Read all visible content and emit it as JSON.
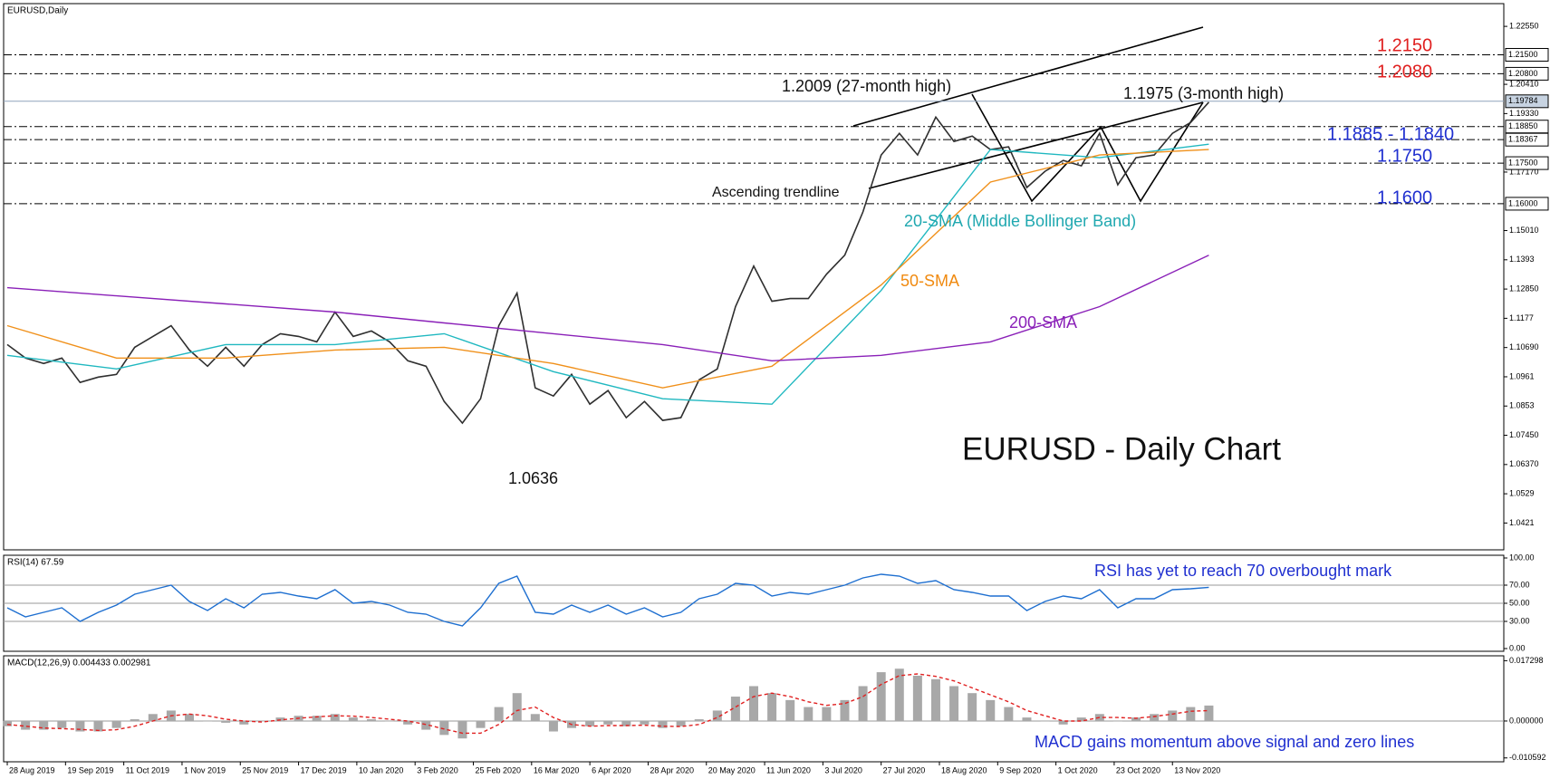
{
  "chart_data": [
    {
      "type": "line",
      "title": "EURUSD,Daily",
      "x": [
        0,
        5,
        10,
        15,
        20,
        25,
        30,
        35,
        40,
        45,
        50,
        55,
        60,
        65,
        70,
        75,
        80,
        85,
        90,
        95,
        100,
        105,
        110,
        115,
        120,
        125,
        130,
        135,
        140,
        145,
        150,
        155,
        160,
        165,
        170,
        175,
        180,
        185,
        190,
        195,
        200,
        205,
        210,
        215,
        220,
        225,
        230,
        235,
        240,
        245,
        250,
        255,
        260,
        265,
        270,
        275,
        280,
        285,
        290,
        295,
        300,
        305,
        310,
        315,
        320,
        325,
        330
      ],
      "xlim": [
        -1,
        411
      ],
      "xticks": [
        {
          "value": 0,
          "label": "28 Aug 2019"
        },
        {
          "value": 16,
          "label": "19 Sep 2019"
        },
        {
          "value": 32,
          "label": "11 Oct 2019"
        },
        {
          "value": 48,
          "label": "1 Nov 2019"
        },
        {
          "value": 64,
          "label": "25 Nov 2019"
        },
        {
          "value": 80,
          "label": "17 Dec 2019"
        },
        {
          "value": 96,
          "label": "10 Jan 2020"
        },
        {
          "value": 112,
          "label": "3 Feb 2020"
        },
        {
          "value": 128,
          "label": "25 Feb 2020"
        },
        {
          "value": 144,
          "label": "16 Mar 2020"
        },
        {
          "value": 160,
          "label": "6 Apr 2020"
        },
        {
          "value": 176,
          "label": "28 Apr 2020"
        },
        {
          "value": 192,
          "label": "20 May 2020"
        },
        {
          "value": 208,
          "label": "11 Jun 2020"
        },
        {
          "value": 224,
          "label": "3 Jul 2020"
        },
        {
          "value": 240,
          "label": "27 Jul 2020"
        },
        {
          "value": 256,
          "label": "18 Aug 2020"
        },
        {
          "value": 272,
          "label": "9 Sep 2020"
        },
        {
          "value": 288,
          "label": "1 Oct 2020"
        },
        {
          "value": 304,
          "label": "23 Oct 2020"
        },
        {
          "value": 320,
          "label": "13 Nov 2020"
        }
      ],
      "ylim": [
        1.0322,
        1.2339
      ],
      "yticks": [
        {
          "value": 1.2255,
          "label": "1.22550"
        },
        {
          "value": 1.2041,
          "label": "1.20410"
        },
        {
          "value": 1.1933,
          "label": "1.19330"
        },
        {
          "value": 1.1717,
          "label": "1.17170"
        },
        {
          "value": 1.1501,
          "label": "1.15010"
        },
        1.1393,
        {
          "value": 1.1285,
          "label": "1.12850"
        },
        1.1177,
        {
          "value": 1.1069,
          "label": "1.10690"
        },
        1.0961,
        1.0853,
        {
          "value": 1.0745,
          "label": "1.07450"
        },
        {
          "value": 1.0637,
          "label": "1.06370"
        },
        1.0529,
        1.0421
      ],
      "levels": [
        {
          "value": 1.215,
          "label": "1.21500",
          "style": "dashdot"
        },
        {
          "value": 1.208,
          "label": "1.20800",
          "style": "dashdot"
        },
        {
          "value": 1.19784,
          "label": "1.19784",
          "style": "solid"
        },
        {
          "value": 1.1885,
          "label": "1.18850",
          "style": "dashdot"
        },
        {
          "value": 1.18367,
          "label": "1.18367",
          "style": "dashdot"
        },
        {
          "value": 1.175,
          "label": "1.17500",
          "style": "dashdot"
        },
        {
          "value": 1.16,
          "label": "1.16000",
          "style": "dashdot"
        }
      ],
      "series": [
        {
          "color": "#2f2f2f",
          "values": [
            1.108,
            1.103,
            1.101,
            1.103,
            1.094,
            1.096,
            1.097,
            1.107,
            1.111,
            1.115,
            1.106,
            1.1,
            1.107,
            1.1,
            1.108,
            1.112,
            1.111,
            1.109,
            1.12,
            1.111,
            1.113,
            1.109,
            1.102,
            1.1,
            1.087,
            1.079,
            1.088,
            1.115,
            1.127,
            1.092,
            1.089,
            1.097,
            1.086,
            1.091,
            1.081,
            1.087,
            1.08,
            1.081,
            1.095,
            1.099,
            1.122,
            1.137,
            1.124,
            1.125,
            1.125,
            1.134,
            1.141,
            1.157,
            1.178,
            1.186,
            1.178,
            1.192,
            1.183,
            1.185,
            1.18,
            1.181,
            1.166,
            1.172,
            1.176,
            1.174,
            1.186,
            1.167,
            1.177,
            1.178,
            1.186,
            1.19,
            1.1975
          ]
        },
        {
          "color": "#20b8c0",
          "x": [
            0,
            30,
            60,
            90,
            120,
            150,
            180,
            210,
            240,
            270,
            300,
            330
          ],
          "values": [
            1.104,
            1.099,
            1.108,
            1.108,
            1.112,
            1.098,
            1.088,
            1.086,
            1.128,
            1.18,
            1.177,
            1.182
          ]
        },
        {
          "color": "#f0901a",
          "x": [
            0,
            30,
            60,
            90,
            120,
            150,
            180,
            210,
            240,
            270,
            300,
            330
          ],
          "values": [
            1.115,
            1.103,
            1.103,
            1.106,
            1.107,
            1.101,
            1.092,
            1.1,
            1.13,
            1.168,
            1.178,
            1.18
          ]
        },
        {
          "color": "#8a20b8",
          "x": [
            0,
            30,
            60,
            90,
            120,
            150,
            180,
            210,
            240,
            270,
            300,
            330
          ],
          "values": [
            1.129,
            1.126,
            1.123,
            1.12,
            1.116,
            1.112,
            1.108,
            1.102,
            1.104,
            1.109,
            1.122,
            1.141
          ]
        }
      ],
      "annotations": [
        {
          "text": "1.2150",
          "color": "#e02020"
        },
        {
          "text": "1.2080",
          "color": "#e02020"
        },
        {
          "text": "1.1885 - 1.1840",
          "color": "#2030d0"
        },
        {
          "text": "1.1750",
          "color": "#2030d0"
        },
        {
          "text": "1.1600",
          "color": "#2030d0"
        },
        {
          "text": "1.2009 (27-month high)",
          "color": "#111111"
        },
        {
          "text": "1.1975 (3-month high)",
          "color": "#111111"
        },
        {
          "text": "Ascending trendline",
          "color": "#111111"
        },
        {
          "text": "20-SMA (Middle Bollinger Band)",
          "color": "#20a8b0"
        },
        {
          "text": "50-SMA",
          "color": "#f08a10"
        },
        {
          "text": "200-SMA",
          "color": "#8a20b8"
        },
        {
          "text": "1.0636",
          "color": "#111111"
        },
        {
          "text": "EURUSD - Daily Chart",
          "color": "#111111"
        }
      ]
    },
    {
      "type": "line",
      "title": "RSI(14) 67.59",
      "ylim": [
        -3,
        103
      ],
      "yticks": [
        {
          "value": 100,
          "label": "100.00"
        },
        {
          "value": 70,
          "label": "70.00"
        },
        {
          "value": 50,
          "label": "50.00"
        },
        {
          "value": 30,
          "label": "30.00"
        },
        {
          "value": 0,
          "label": "0.00"
        }
      ],
      "series": [
        {
          "color": "#1e6fd0",
          "values": [
            45,
            35,
            40,
            45,
            30,
            40,
            48,
            60,
            65,
            70,
            52,
            42,
            55,
            45,
            60,
            62,
            58,
            55,
            65,
            50,
            52,
            48,
            40,
            38,
            30,
            25,
            45,
            72,
            80,
            40,
            38,
            48,
            40,
            48,
            38,
            45,
            35,
            40,
            55,
            60,
            72,
            70,
            58,
            62,
            60,
            65,
            70,
            78,
            82,
            80,
            72,
            75,
            65,
            62,
            58,
            58,
            42,
            52,
            58,
            55,
            65,
            45,
            55,
            55,
            65,
            66,
            67.59
          ]
        }
      ],
      "annotations": [
        {
          "text": "RSI has yet to reach 70 overbought mark",
          "color": "#2030d0"
        }
      ]
    },
    {
      "type": "bar",
      "title": "MACD(12,26,9) 0.004433 0.002981",
      "ylim": [
        -0.0117,
        0.0187
      ],
      "yticks": [
        {
          "value": 0.017298,
          "label": "0.017298"
        },
        {
          "value": 0,
          "label": "0.000000"
        },
        {
          "value": -0.010592,
          "label": "-0.010592"
        }
      ],
      "series": [
        {
          "color": "#a8a8a8",
          "values": [
            -0.0015,
            -0.0025,
            -0.0025,
            -0.002,
            -0.003,
            -0.003,
            -0.002,
            0.0005,
            0.002,
            0.003,
            0.002,
            0,
            -0.0005,
            -0.001,
            0,
            0.001,
            0.0015,
            0.0015,
            0.002,
            0.001,
            0.0005,
            0,
            -0.001,
            -0.0025,
            -0.004,
            -0.005,
            -0.002,
            0.004,
            0.008,
            0.002,
            -0.003,
            -0.002,
            -0.0015,
            -0.001,
            -0.0015,
            -0.001,
            -0.002,
            -0.0015,
            0.0005,
            0.003,
            0.007,
            0.01,
            0.008,
            0.006,
            0.004,
            0.004,
            0.006,
            0.01,
            0.014,
            0.015,
            0.013,
            0.012,
            0.01,
            0.008,
            0.006,
            0.004,
            0.001,
            0,
            -0.001,
            0.001,
            0.002,
            0,
            0.001,
            0.002,
            0.003,
            0.004,
            0.004433
          ]
        },
        {
          "color": "#e02020",
          "style": "dashed",
          "values": [
            -0.001,
            -0.0015,
            -0.002,
            -0.0022,
            -0.0024,
            -0.0027,
            -0.0025,
            -0.0015,
            0,
            0.0015,
            0.002,
            0.0015,
            0.0005,
            0,
            -0.0003,
            0.0003,
            0.0008,
            0.0012,
            0.0015,
            0.0014,
            0.001,
            0.0005,
            0,
            -0.001,
            -0.0023,
            -0.0035,
            -0.0035,
            -0.001,
            0.003,
            0.004,
            0.001,
            -0.001,
            -0.0015,
            -0.0013,
            -0.0013,
            -0.0012,
            -0.0015,
            -0.0016,
            -0.001,
            0.001,
            0.004,
            0.007,
            0.008,
            0.007,
            0.0055,
            0.0045,
            0.005,
            0.007,
            0.0105,
            0.013,
            0.0135,
            0.0128,
            0.0115,
            0.0095,
            0.0075,
            0.0055,
            0.003,
            0.0015,
            0,
            0,
            0.001,
            0.001,
            0.0008,
            0.0013,
            0.002,
            0.0028,
            0.002981
          ]
        }
      ],
      "annotations": [
        {
          "text": "MACD gains momentum above signal and zero lines",
          "color": "#2030d0"
        }
      ]
    }
  ]
}
